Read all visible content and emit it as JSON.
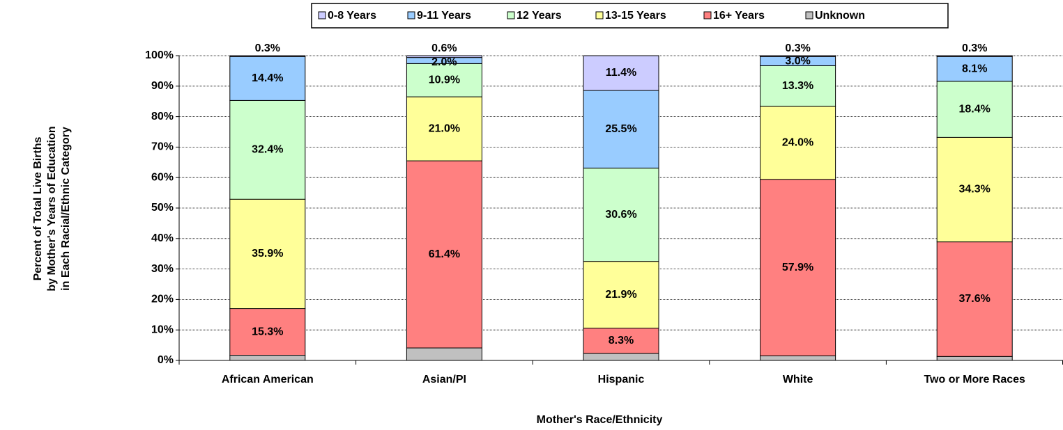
{
  "chart_data": {
    "type": "stacked_bar",
    "xlabel": "Mother's Race/Ethnicity",
    "ylabel": [
      "Percent of Total Live Births",
      "by Mother's Years of Education",
      "in Each Racial/Ethnic Category"
    ],
    "categories": [
      "African American",
      "Asian/PI",
      "Hispanic",
      "White",
      "Two or More Races"
    ],
    "series": [
      {
        "name": "0-8 Years",
        "color": "#ccccff",
        "values": [
          0.3,
          0.6,
          11.4,
          0.3,
          0.3
        ],
        "value_labels": [
          "0.3%",
          "0.6%",
          "11.4%",
          "0.3%",
          "0.3%"
        ]
      },
      {
        "name": "9-11 Years",
        "color": "#99ccff",
        "values": [
          14.4,
          2.0,
          25.5,
          3.0,
          8.1
        ],
        "value_labels": [
          "14.4%",
          "2.0%",
          "25.5%",
          "3.0%",
          "8.1%"
        ]
      },
      {
        "name": "12 Years",
        "color": "#ccffcc",
        "values": [
          32.4,
          10.9,
          30.6,
          13.3,
          18.4
        ],
        "value_labels": [
          "32.4%",
          "10.9%",
          "30.6%",
          "13.3%",
          "18.4%"
        ]
      },
      {
        "name": "13-15 Years",
        "color": "#ffff99",
        "values": [
          35.9,
          21.0,
          21.9,
          24.0,
          34.3
        ],
        "value_labels": [
          "35.9%",
          "21.0%",
          "21.9%",
          "24.0%",
          "34.3%"
        ]
      },
      {
        "name": "16+ Years",
        "color": "#ff8080",
        "values": [
          15.3,
          61.4,
          8.3,
          57.9,
          37.6
        ],
        "value_labels": [
          "15.3%",
          "61.4%",
          "8.3%",
          "57.9%",
          "37.6%"
        ]
      },
      {
        "name": "Unknown",
        "color": "#c0c0c0",
        "values": [
          1.7,
          4.1,
          2.3,
          1.5,
          1.3
        ]
      }
    ],
    "ylim": [
      0,
      100
    ],
    "yticks": [
      {
        "value": 0,
        "label": "0%"
      },
      {
        "value": 10,
        "label": "10%"
      },
      {
        "value": 20,
        "label": "20%"
      },
      {
        "value": 30,
        "label": "30%"
      },
      {
        "value": 40,
        "label": "40%"
      },
      {
        "value": 50,
        "label": "50%"
      },
      {
        "value": 60,
        "label": "60%"
      },
      {
        "value": 70,
        "label": "70%"
      },
      {
        "value": 80,
        "label": "80%"
      },
      {
        "value": 90,
        "label": "90%"
      },
      {
        "value": 100,
        "label": "100%"
      }
    ],
    "grid": true,
    "legend": "top"
  }
}
